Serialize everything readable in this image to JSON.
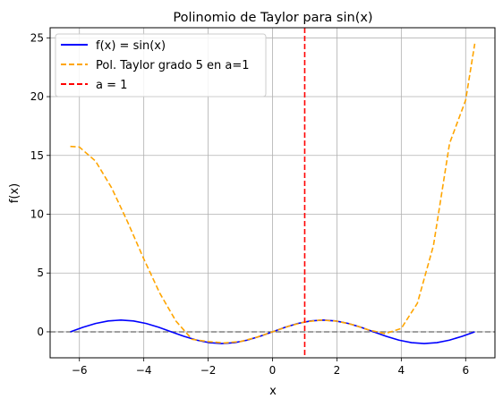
{
  "chart_data": {
    "type": "line",
    "title": "Polinomio de Taylor para sin(x)",
    "xlabel": "x",
    "ylabel": "f(x)",
    "xlim": [
      -6.91,
      6.91
    ],
    "ylim": [
      -2.21,
      25.86
    ],
    "xticks": [
      -6,
      -4,
      -2,
      0,
      2,
      4,
      6
    ],
    "xtick_labels": [
      "−6",
      "−4",
      "−2",
      "0",
      "2",
      "4",
      "6"
    ],
    "yticks": [
      0,
      5,
      10,
      15,
      20,
      25
    ],
    "ytick_labels": [
      "0",
      "5",
      "10",
      "15",
      "20",
      "25"
    ],
    "grid": true,
    "legend_position": "upper-left",
    "series": [
      {
        "name": "f(x) = sin(x)",
        "style": "solid",
        "color": "#0000ff",
        "x": [
          -6.283,
          -5.89,
          -5.498,
          -5.105,
          -4.712,
          -4.32,
          -3.927,
          -3.534,
          -3.142,
          -2.749,
          -2.356,
          -1.963,
          -1.571,
          -1.178,
          -0.785,
          -0.393,
          0,
          0.393,
          0.785,
          1.178,
          1.571,
          1.963,
          2.356,
          2.749,
          3.142,
          3.534,
          3.927,
          4.32,
          4.712,
          5.105,
          5.498,
          5.89,
          6.283
        ],
        "y": [
          0,
          0.383,
          0.707,
          0.924,
          1,
          0.924,
          0.707,
          0.383,
          0,
          -0.383,
          -0.707,
          -0.924,
          -1,
          -0.924,
          -0.707,
          -0.383,
          0,
          0.383,
          0.707,
          0.924,
          1,
          0.924,
          0.707,
          0.383,
          0,
          -0.383,
          -0.707,
          -0.924,
          -1,
          -0.924,
          -0.707,
          -0.383,
          0
        ]
      },
      {
        "name": "Pol. Taylor grado 5 en a=1",
        "style": "dashed",
        "color": "#ffa500",
        "x": [
          -6.283,
          -6.0,
          -5.5,
          -5.0,
          -4.5,
          -4.0,
          -3.5,
          -3.0,
          -2.5,
          -2.0,
          -1.5,
          -1.0,
          -0.5,
          0,
          0.5,
          1.0,
          1.5,
          2.0,
          2.5,
          3.0,
          3.5,
          4.0,
          4.5,
          5.0,
          5.5,
          6.0,
          6.283
        ],
        "y": [
          15.77,
          15.71,
          14.52,
          12.25,
          9.33,
          6.2,
          3.27,
          0.91,
          -0.64,
          -0.83,
          -0.95,
          -0.83,
          -0.47,
          0.0,
          0.48,
          0.84,
          0.997,
          0.91,
          0.6,
          0.15,
          -0.16,
          0.29,
          2.43,
          7.34,
          16.02,
          19.7,
          24.5
        ]
      }
    ],
    "reference_lines": [
      {
        "name": "a = 1",
        "orientation": "vertical",
        "value": 1,
        "style": "dashed",
        "color": "#ff0000"
      },
      {
        "name": "",
        "orientation": "horizontal",
        "value": 0,
        "style": "dashed",
        "color": "#808080"
      }
    ]
  }
}
